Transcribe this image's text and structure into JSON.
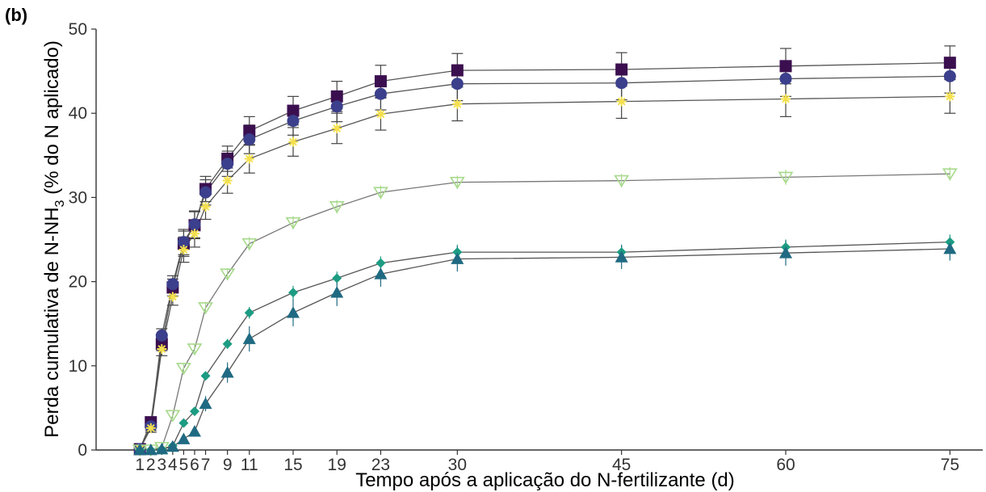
{
  "chart_data": {
    "type": "line",
    "panel_label": "(b)",
    "xlabel": "Tempo após a aplicação do N-fertilizante (d)",
    "ylabel_main": "Perda cumulativa de N-NH",
    "ylabel_sub": "3",
    "ylabel_tail": " (% do N aplicado)",
    "xlim": [
      -3,
      78
    ],
    "ylim": [
      0,
      50
    ],
    "x_ticks": [
      1,
      2,
      3,
      4,
      5,
      6,
      7,
      9,
      11,
      15,
      19,
      23,
      30,
      45,
      60,
      75
    ],
    "x_tick_labels": [
      "1",
      "2",
      "3",
      "4",
      "5",
      "6",
      "7",
      "9",
      "11",
      "15",
      "19",
      "23",
      "30",
      "45",
      "60",
      "75"
    ],
    "y_ticks": [
      0,
      10,
      20,
      30,
      40,
      50
    ],
    "y_tick_labels": [
      "0",
      "10",
      "20",
      "30",
      "40",
      "50"
    ],
    "grid": false,
    "x": [
      1,
      2,
      3,
      4,
      5,
      6,
      7,
      9,
      11,
      15,
      19,
      23,
      30,
      45,
      60,
      75
    ],
    "series": [
      {
        "marker": "square",
        "color": "#3b0f4f",
        "line_color": "#555555",
        "values": [
          0.1,
          3.3,
          12.6,
          19.3,
          24.5,
          26.7,
          31.0,
          34.6,
          37.9,
          40.3,
          42.0,
          43.8,
          45.1,
          45.2,
          45.6,
          46.0
        ],
        "errors": [
          0.3,
          0.5,
          0.8,
          1.0,
          1.5,
          1.6,
          1.5,
          1.5,
          1.7,
          1.7,
          1.8,
          1.9,
          2.0,
          2.0,
          2.1,
          2.0
        ]
      },
      {
        "marker": "circle",
        "color": "#3b3f8c",
        "line_color": "#555555",
        "values": [
          0.1,
          2.8,
          13.6,
          19.7,
          24.7,
          26.8,
          30.6,
          34.0,
          36.9,
          39.1,
          40.8,
          42.3,
          43.5,
          43.6,
          44.1,
          44.4
        ],
        "errors": [
          0.3,
          0.5,
          0.8,
          1.0,
          1.5,
          1.6,
          1.5,
          1.5,
          1.7,
          1.7,
          1.8,
          1.9,
          2.0,
          2.0,
          2.1,
          2.0
        ]
      },
      {
        "marker": "star",
        "color": "#f4e04d",
        "line_color": "#555555",
        "values": [
          0.1,
          2.6,
          12.0,
          18.2,
          23.8,
          25.7,
          28.9,
          32.0,
          34.6,
          36.6,
          38.2,
          39.9,
          41.1,
          41.4,
          41.7,
          42.0
        ],
        "errors": [
          0.3,
          0.5,
          0.8,
          1.0,
          1.5,
          1.6,
          1.5,
          1.5,
          1.7,
          1.7,
          1.8,
          1.9,
          2.0,
          2.0,
          2.1,
          2.0
        ]
      },
      {
        "marker": "triangle-down",
        "color": "#a7d98c",
        "line_color": "#777777",
        "values": [
          0.0,
          0.0,
          0.3,
          4.1,
          9.7,
          12.0,
          16.9,
          20.9,
          24.5,
          27.0,
          28.9,
          30.6,
          31.8,
          32.0,
          32.4,
          32.8
        ],
        "errors": [
          0.2,
          0.2,
          0.3,
          0.4,
          0.6,
          0.6,
          0.7,
          0.7,
          0.8,
          0.8,
          0.8,
          0.8,
          0.8,
          0.8,
          0.9,
          0.8
        ]
      },
      {
        "marker": "diamond",
        "color": "#1c9c82",
        "line_color": "#555555",
        "values": [
          0.0,
          0.0,
          0.1,
          0.5,
          3.2,
          4.6,
          8.8,
          12.6,
          16.3,
          18.7,
          20.4,
          22.2,
          23.5,
          23.5,
          24.1,
          24.7
        ],
        "errors": [
          0.2,
          0.2,
          0.2,
          0.3,
          0.4,
          0.4,
          0.5,
          0.6,
          0.7,
          0.8,
          0.8,
          0.8,
          0.9,
          0.9,
          0.9,
          0.9
        ]
      },
      {
        "marker": "triangle-up",
        "color": "#1f6a82",
        "line_color": "#555555",
        "values": [
          0.0,
          0.0,
          0.1,
          0.4,
          1.3,
          2.2,
          5.5,
          9.2,
          13.2,
          16.3,
          18.7,
          20.9,
          22.7,
          22.9,
          23.4,
          23.9
        ],
        "errors": [
          0.2,
          0.2,
          0.2,
          0.3,
          0.4,
          0.5,
          0.9,
          1.2,
          1.5,
          1.6,
          1.6,
          1.5,
          1.5,
          1.4,
          1.5,
          1.4
        ]
      }
    ]
  }
}
